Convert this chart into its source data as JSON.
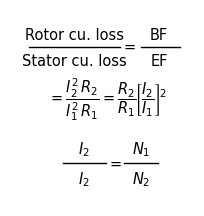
{
  "background_color": "#ffffff",
  "figsize": [
    2.04,
    2.16
  ],
  "dpi": 100,
  "font_color": "#000000",
  "fontsize": 10.5,
  "line1_num": "Rotor cu. loss",
  "line1_den": "Stator cu. loss",
  "bf_text": "BF",
  "ef_text": "EF",
  "line2_math": "$= \\dfrac{I_2^2\\, R_2}{I_1^2\\, R_1} = \\dfrac{R_2}{R_1}\\!\\left[\\dfrac{I_2}{I_1}\\right]^{\\!2}$",
  "line3_num": "$I_2$",
  "line3_den": "$I_2$",
  "line3_eq": "$= \\dfrac{N_1}{N_2}$",
  "eq_sign": "$=$"
}
